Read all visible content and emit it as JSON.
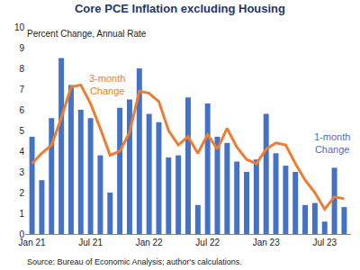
{
  "chart_data": {
    "type": "bar",
    "title": "Core PCE Inflation excluding Housing",
    "subtitle": "Percent Change, Annual Rate",
    "source": "Source: Bureau of Economic Analysis; author's calculations.",
    "categories": [
      "Jan 21",
      null,
      null,
      null,
      null,
      null,
      "Jul 21",
      null,
      null,
      null,
      null,
      null,
      "Jan 22",
      null,
      null,
      null,
      null,
      null,
      "Jul 22",
      null,
      null,
      null,
      null,
      null,
      "Jan 23",
      null,
      null,
      null,
      null,
      null,
      "Jul 23",
      null,
      null
    ],
    "series": [
      {
        "name": "1-month Change",
        "type": "bar",
        "color": "#4472C4",
        "values": [
          4.7,
          2.6,
          5.6,
          8.5,
          7.2,
          6.0,
          5.6,
          3.8,
          2.0,
          6.1,
          6.5,
          8.0,
          5.8,
          5.4,
          3.7,
          3.8,
          6.6,
          1.4,
          6.3,
          4.7,
          4.4,
          3.5,
          3.0,
          3.6,
          5.8,
          3.9,
          3.3,
          3.0,
          1.4,
          1.5,
          0.6,
          3.2,
          1.3
        ]
      },
      {
        "name": "3-month Change",
        "type": "line",
        "color": "#ED7D31",
        "line_style": "solid",
        "values": [
          3.4,
          3.9,
          4.3,
          5.6,
          7.1,
          7.2,
          6.3,
          5.1,
          3.8,
          4.0,
          4.9,
          6.9,
          6.8,
          6.4,
          5.0,
          4.3,
          4.7,
          3.9,
          4.8,
          4.1,
          5.1,
          4.2,
          3.6,
          3.4,
          4.1,
          4.4,
          4.3,
          3.4,
          2.6,
          2.0,
          1.2,
          1.8,
          1.7
        ]
      }
    ],
    "ylim": [
      0,
      10
    ],
    "yticks": [
      0,
      1,
      2,
      3,
      4,
      5,
      6,
      7,
      8,
      9,
      10
    ],
    "grid": false
  }
}
